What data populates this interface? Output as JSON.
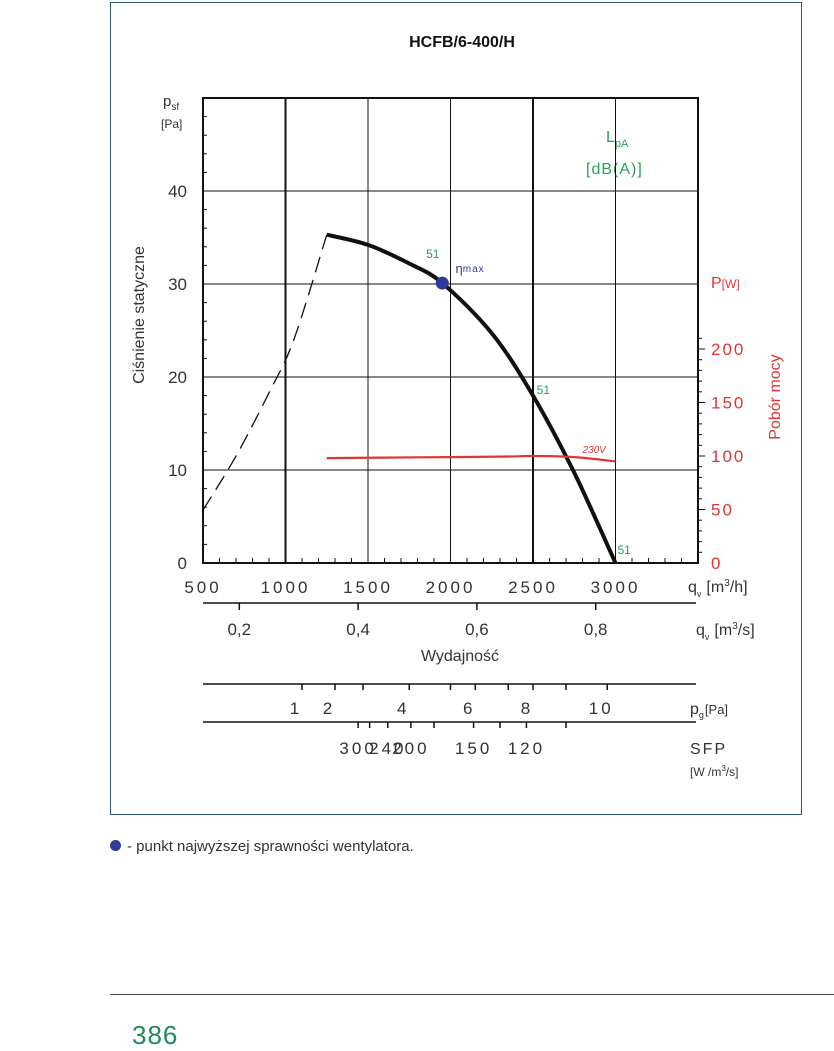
{
  "chart_data": {
    "type": "line",
    "title": "HCFB/6-400/H",
    "x_axis": {
      "label_top": "q",
      "label_top_sub": "v",
      "unit_top": "[m",
      "unit_top_sup": "3",
      "unit_top_end": "/h]",
      "ticks": [
        "500",
        "1000",
        "1500",
        "2000",
        "2500",
        "3000"
      ],
      "xlim": [
        500,
        3000
      ]
    },
    "x_axis_m3s": {
      "label": "q",
      "label_sub": "v",
      "unit": "[m",
      "unit_sup": "3",
      "unit_end": "/s]",
      "ticks": [
        "0,2",
        "0,4",
        "0,6",
        "0,8"
      ],
      "values": [
        0.2,
        0.4,
        0.6,
        0.8
      ],
      "caption": "Wydajność"
    },
    "pg_axis": {
      "label": "p",
      "label_sub": "g",
      "unit": "[Pa]",
      "ticks": [
        "1",
        "2",
        "4",
        "6",
        "8",
        "10"
      ],
      "values": [
        1,
        2,
        4,
        6,
        8,
        10
      ]
    },
    "sfp_axis": {
      "label": "SFP",
      "unit": "[W /m",
      "unit_sup": "3",
      "unit_end": "/s]",
      "ticks": [
        "300",
        "240",
        "200",
        "150",
        "120"
      ],
      "values": [
        300,
        240,
        200,
        150,
        120
      ]
    },
    "y_axis": {
      "label": "Ciśnienie statyczne",
      "symbol": "p",
      "symbol_sub": "sf",
      "unit": "[Pa]",
      "ticks": [
        "0",
        "10",
        "20",
        "30",
        "40"
      ],
      "ylim": [
        0,
        50
      ]
    },
    "y2_axis": {
      "label": "Pobór mocy",
      "symbol": "P",
      "unit": "[W]",
      "ticks": [
        "0",
        "50",
        "100",
        "150",
        "200"
      ],
      "ylim": [
        0,
        200
      ],
      "color": "#e03535"
    },
    "lpa_label": {
      "symbol": "L",
      "sub": "pA",
      "unit": "[dB(A)]",
      "color": "#2aa05a"
    },
    "series": [
      {
        "role": "pressure-stall",
        "style": "dashed",
        "x": [
          500,
          700,
          900,
          1050,
          1250
        ],
        "y": [
          5.7,
          11.5,
          18.3,
          24,
          35.3
        ]
      },
      {
        "role": "pressure",
        "style": "solid",
        "x": [
          1250,
          1500,
          1750,
          1950,
          2250,
          2500,
          2750,
          3000
        ],
        "y": [
          35.3,
          34.2,
          32.2,
          30.1,
          24.7,
          18,
          9.7,
          0
        ],
        "color": "#111111"
      },
      {
        "name": "230V",
        "role": "power",
        "x": [
          1250,
          1600,
          2000,
          2350,
          2500,
          2750,
          3000
        ],
        "y2": [
          98,
          98.5,
          99,
          99.5,
          100,
          99,
          95
        ],
        "color": "#e03535"
      }
    ],
    "annotations": [
      {
        "text": "51",
        "x": 1840,
        "y": 33.2,
        "color": "#2aa05a"
      },
      {
        "text": "51",
        "x": 2510,
        "y": 18.6,
        "color": "#2aa05a"
      },
      {
        "text": "51",
        "x": 3000,
        "y": 1.4,
        "color": "#2aa05a"
      },
      {
        "text": "230V",
        "x": 2800,
        "y2": 103,
        "color": "#e03535"
      },
      {
        "text": "η",
        "sub": "max",
        "x": 2000,
        "y": 31.6,
        "color": "#2e3a9e"
      }
    ],
    "eta_max_point": {
      "x": 1950,
      "y": 30.1,
      "color": "#2e3a9e"
    },
    "grid": true
  },
  "footnote": {
    "text": "- punkt najwyższej sprawności wentylatora.",
    "dot_color": "#2e3a9e"
  },
  "page_number": "386"
}
